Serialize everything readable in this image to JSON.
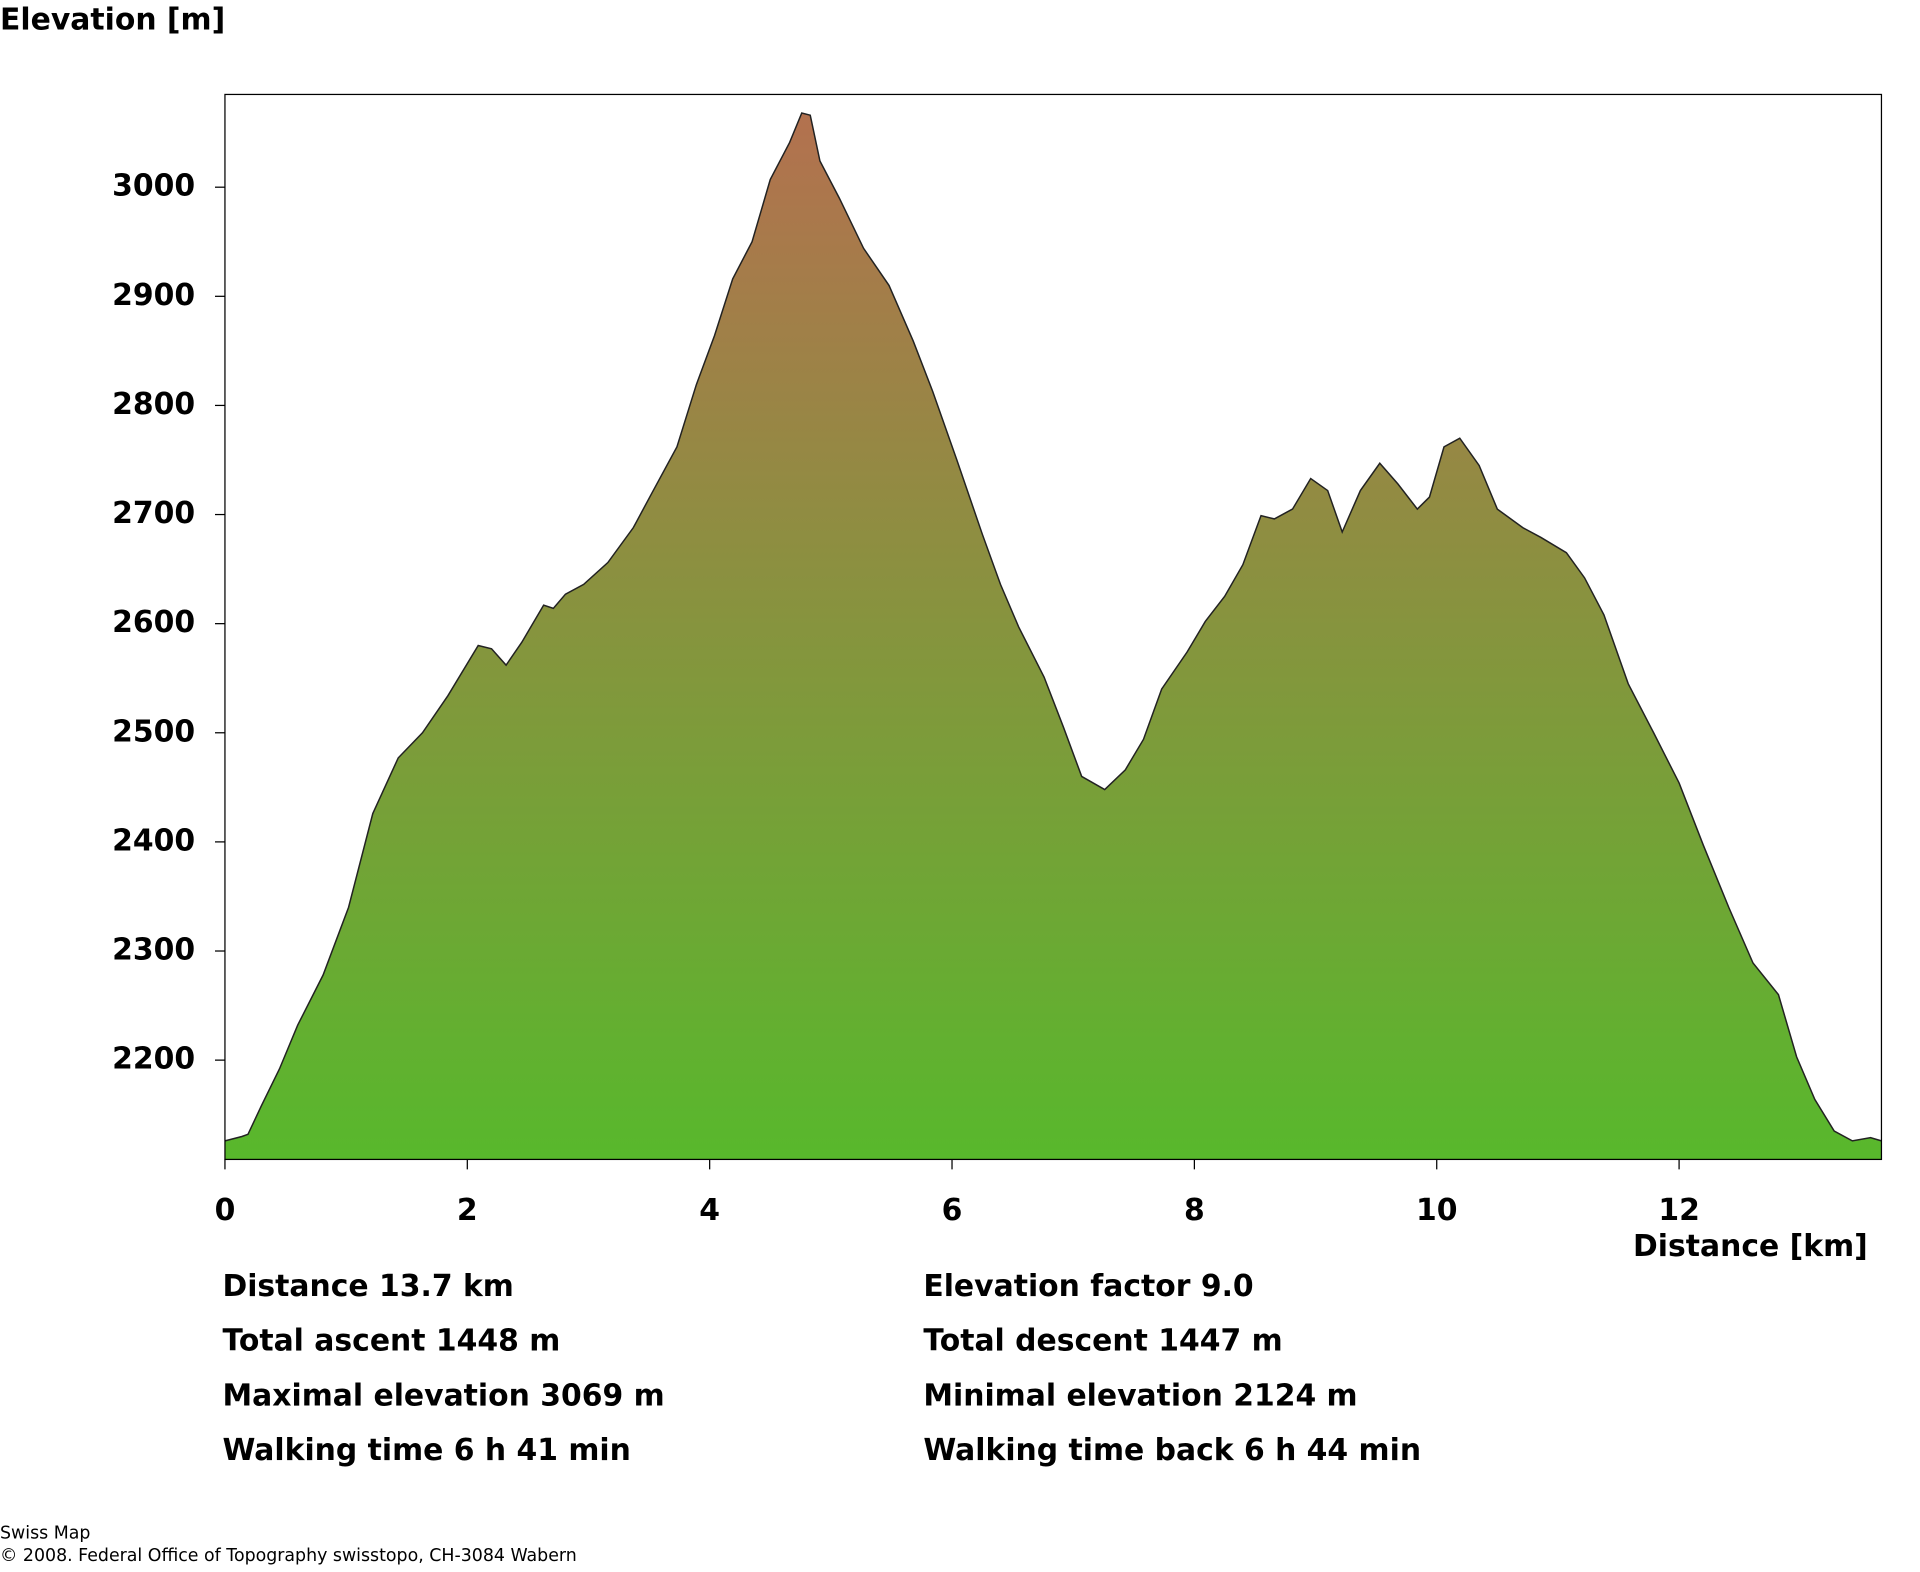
{
  "chart_data": {
    "type": "area",
    "y_label": "Elevation [m]",
    "x_label": "Distance [km]",
    "x": [
      0,
      0.14,
      0.19,
      0.3,
      0.45,
      0.6,
      0.81,
      1.02,
      1.22,
      1.43,
      1.63,
      1.84,
      2.09,
      2.2,
      2.32,
      2.45,
      2.63,
      2.71,
      2.81,
      2.96,
      3.16,
      3.37,
      3.52,
      3.73,
      3.89,
      4.04,
      4.19,
      4.35,
      4.5,
      4.66,
      4.76,
      4.83,
      4.91,
      5.07,
      5.27,
      5.48,
      5.68,
      5.84,
      6.04,
      6.25,
      6.4,
      6.55,
      6.76,
      6.92,
      7.07,
      7.26,
      7.43,
      7.58,
      7.73,
      7.94,
      8.09,
      8.25,
      8.4,
      8.55,
      8.66,
      8.81,
      8.96,
      9.1,
      9.22,
      9.37,
      9.53,
      9.68,
      9.84,
      9.94,
      10.06,
      10.19,
      10.35,
      10.5,
      10.71,
      10.86,
      11.07,
      11.22,
      11.38,
      11.58,
      11.79,
      12.0,
      12.2,
      12.41,
      12.61,
      12.82,
      12.97,
      13.12,
      13.28,
      13.43,
      13.58,
      13.67
    ],
    "values": [
      2126,
      2130,
      2132,
      2158,
      2192,
      2232,
      2278,
      2340,
      2426,
      2477,
      2500,
      2534,
      2580,
      2577,
      2562,
      2583,
      2617,
      2614,
      2627,
      2636,
      2656,
      2688,
      2719,
      2762,
      2819,
      2864,
      2916,
      2950,
      3007,
      3041,
      3068,
      3066,
      3024,
      2990,
      2944,
      2910,
      2859,
      2813,
      2750,
      2682,
      2636,
      2597,
      2551,
      2505,
      2460,
      2448,
      2466,
      2494,
      2540,
      2574,
      2602,
      2625,
      2654,
      2699,
      2696,
      2705,
      2733,
      2722,
      2684,
      2722,
      2747,
      2728,
      2705,
      2716,
      2762,
      2770,
      2745,
      2705,
      2688,
      2679,
      2665,
      2642,
      2608,
      2545,
      2500,
      2454,
      2397,
      2340,
      2289,
      2260,
      2203,
      2164,
      2135,
      2126,
      2129,
      2126
    ],
    "colors": {
      "top": "#b3714f",
      "bottom": "#58b82c"
    },
    "xlim": [
      0,
      13.67
    ],
    "ylim": [
      2109,
      3085
    ],
    "xticks": [
      0,
      2,
      4,
      6,
      8,
      10,
      12
    ],
    "yticks": [
      2200,
      2300,
      2400,
      2500,
      2600,
      2700,
      2800,
      2900,
      3000
    ]
  },
  "stats": [
    "Distance 13.7 km",
    "Elevation factor 9.0",
    "Total ascent  1448 m",
    "Total descent  1447 m",
    "Maximal elevation  3069 m",
    "Minimal elevation  2124 m",
    "Walking time  6 h 41 min",
    "Walking time back  6 h 44 min"
  ],
  "footer": [
    "Swiss Map",
    "© 2008. Federal Office of Topography swisstopo, CH-3084 Wabern"
  ]
}
